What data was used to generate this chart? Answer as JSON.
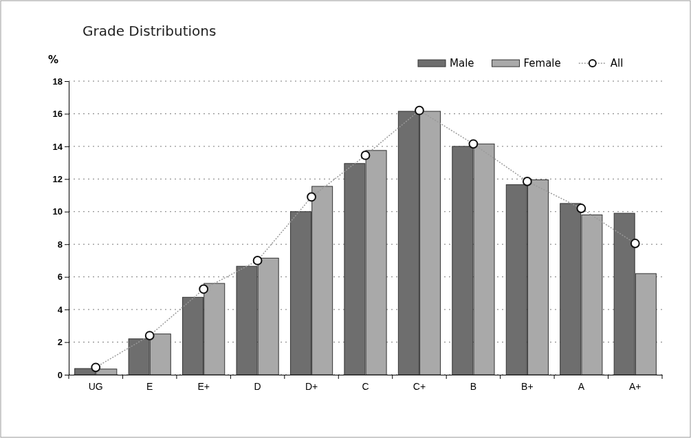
{
  "chart_data": {
    "type": "bar",
    "title": "Grade Distributions",
    "ylabel": "%",
    "categories": [
      "UG",
      "E",
      "E+",
      "D",
      "D+",
      "C",
      "C+",
      "B",
      "B+",
      "A",
      "A+"
    ],
    "series": [
      {
        "name": "Male",
        "color": "#6e6e6e",
        "values": [
          0.38,
          2.2,
          4.75,
          6.65,
          10.0,
          12.95,
          16.15,
          14.0,
          11.65,
          10.5,
          9.9
        ]
      },
      {
        "name": "Female",
        "color": "#a9a9a9",
        "values": [
          0.35,
          2.5,
          5.6,
          7.15,
          11.55,
          13.75,
          16.15,
          14.15,
          11.95,
          9.8,
          6.2
        ]
      },
      {
        "name": "All",
        "type": "line",
        "color": "#9a9a9a",
        "marker": "circle",
        "line_style": "dotted",
        "values": [
          0.45,
          2.4,
          5.25,
          7.0,
          10.9,
          13.45,
          16.2,
          14.15,
          11.85,
          10.2,
          8.05
        ]
      }
    ],
    "ylim": [
      0,
      18
    ],
    "yticks": [
      0,
      2,
      4,
      6,
      8,
      10,
      12,
      14,
      16,
      18
    ],
    "grid": "y",
    "legend": "top right"
  }
}
